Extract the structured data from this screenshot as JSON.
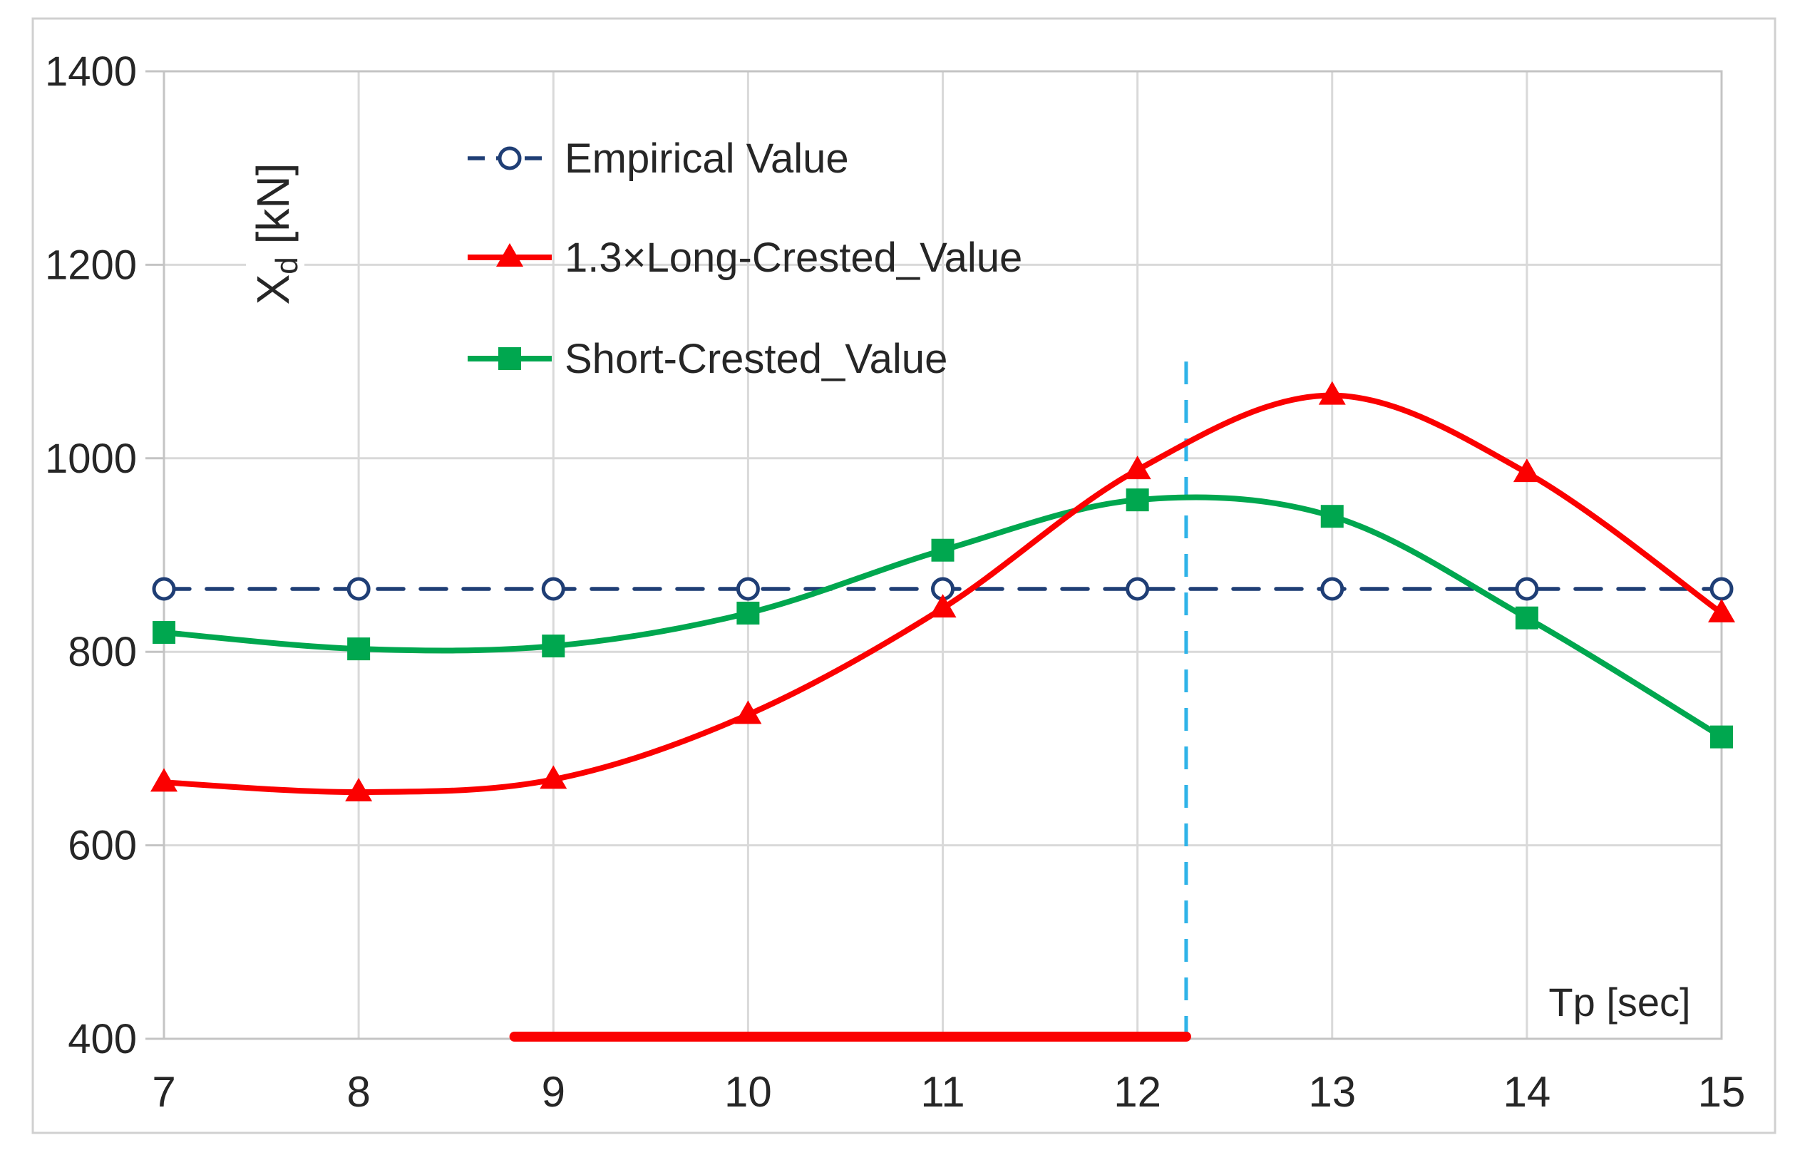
{
  "chart_data": {
    "type": "line",
    "title": "",
    "xlabel": "Tp [sec]",
    "ylabel": "Xd [kN]",
    "ylabel_main": "X",
    "ylabel_sub": "d",
    "ylabel_unit": " [kN]",
    "xlim": [
      7,
      15
    ],
    "ylim": [
      400,
      1400
    ],
    "grid": true,
    "legend_position": "inside-top-left",
    "x": [
      7,
      8,
      9,
      10,
      11,
      12,
      13,
      14,
      15
    ],
    "xticks": [
      "7",
      "8",
      "9",
      "10",
      "11",
      "12",
      "13",
      "14",
      "15"
    ],
    "yticks": [
      "400",
      "600",
      "800",
      "1000",
      "1200",
      "1400"
    ],
    "ytick_values": [
      400,
      600,
      800,
      1000,
      1200,
      1400
    ],
    "series": [
      {
        "name": "Empirical Value",
        "color": "#1F3E75",
        "line_style": "dashed",
        "marker": "circle-open",
        "values": [
          865,
          865,
          865,
          865,
          865,
          865,
          865,
          865,
          865
        ]
      },
      {
        "name": "1.3×Long-Crested_Value",
        "color": "#FB0000",
        "line_style": "solid",
        "marker": "triangle",
        "values": [
          665,
          655,
          668,
          735,
          845,
          988,
          1065,
          985,
          840
        ]
      },
      {
        "name": "Short-Crested_Value",
        "color": "#00A74F",
        "line_style": "solid",
        "marker": "square",
        "values": [
          820,
          803,
          806,
          840,
          905,
          957,
          940,
          835,
          712
        ]
      }
    ],
    "annotations": {
      "vline": {
        "x": 12.25,
        "y_from": 400,
        "y_to": 1100,
        "color": "#2FB3E8",
        "style": "dashed"
      },
      "baseline_segment": {
        "y": 400,
        "x_from": 8.8,
        "x_to": 12.25,
        "color": "#FB0000"
      }
    },
    "colors": {
      "gridline": "#D9D9D9",
      "frame": "#C4C4C4",
      "figure_border": "#D0D0D0",
      "text": "#262626"
    }
  }
}
